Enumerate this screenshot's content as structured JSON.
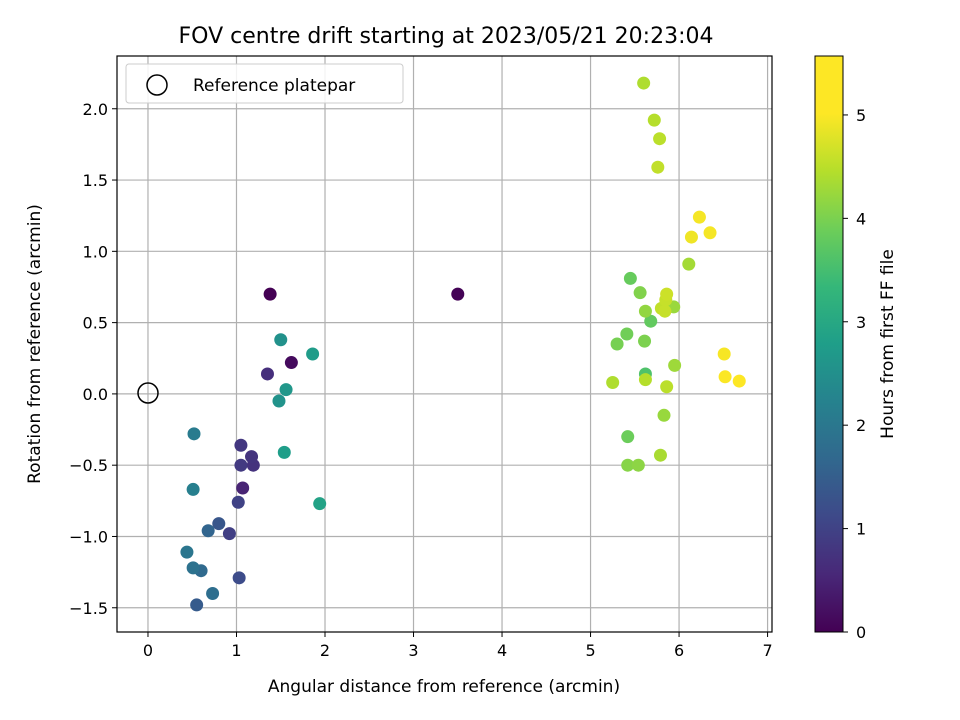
{
  "chart_data": {
    "type": "scatter",
    "title": "FOV centre drift starting at 2023/05/21 20:23:04",
    "xlabel": "Angular distance from reference (arcmin)",
    "ylabel": "Rotation from reference (arcmin)",
    "xlim": [
      -0.35,
      7.05
    ],
    "ylim": [
      -1.67,
      2.37
    ],
    "xticks": [
      0,
      1,
      2,
      3,
      4,
      5,
      6,
      7
    ],
    "xtick_labels": [
      "0",
      "1",
      "2",
      "3",
      "4",
      "5",
      "6",
      "7"
    ],
    "yticks": [
      -1.5,
      -1.0,
      -0.5,
      0.0,
      0.5,
      1.0,
      1.5,
      2.0
    ],
    "ytick_labels": [
      "−1.5",
      "−1.0",
      "−0.5",
      "0.0",
      "0.5",
      "1.0",
      "1.5",
      "2.0"
    ],
    "grid": true,
    "legend": {
      "position": "top-left",
      "entries": [
        "Reference platepar"
      ]
    },
    "reference_point": {
      "x": 0.0,
      "y": 0.0
    },
    "colorbar": {
      "label": "Hours from first FF file",
      "range": [
        0,
        5.57
      ],
      "ticks": [
        0,
        1,
        2,
        3,
        4,
        5
      ],
      "tick_labels": [
        "0",
        "1",
        "2",
        "3",
        "4",
        "5"
      ],
      "colormap": "viridis"
    },
    "points": [
      {
        "x": 1.38,
        "y": 0.7,
        "c": 0.0
      },
      {
        "x": 3.5,
        "y": 0.7,
        "c": 0.03
      },
      {
        "x": 1.62,
        "y": 0.22,
        "c": 0.15
      },
      {
        "x": 1.07,
        "y": -0.66,
        "c": 0.55
      },
      {
        "x": 1.35,
        "y": 0.14,
        "c": 0.75
      },
      {
        "x": 1.19,
        "y": -0.5,
        "c": 0.8
      },
      {
        "x": 1.17,
        "y": -0.44,
        "c": 0.85
      },
      {
        "x": 1.05,
        "y": -0.36,
        "c": 0.9
      },
      {
        "x": 1.05,
        "y": -0.5,
        "c": 0.95
      },
      {
        "x": 0.92,
        "y": -0.98,
        "c": 1.05
      },
      {
        "x": 1.02,
        "y": -0.76,
        "c": 1.1
      },
      {
        "x": 1.03,
        "y": -1.29,
        "c": 1.3
      },
      {
        "x": 0.8,
        "y": -0.91,
        "c": 1.5
      },
      {
        "x": 0.55,
        "y": -1.48,
        "c": 1.6
      },
      {
        "x": 0.68,
        "y": -0.96,
        "c": 1.8
      },
      {
        "x": 0.6,
        "y": -1.24,
        "c": 1.9
      },
      {
        "x": 0.73,
        "y": -1.4,
        "c": 2.0
      },
      {
        "x": 0.51,
        "y": -1.22,
        "c": 2.1
      },
      {
        "x": 0.44,
        "y": -1.11,
        "c": 2.2
      },
      {
        "x": 0.52,
        "y": -0.28,
        "c": 2.3
      },
      {
        "x": 0.51,
        "y": -0.67,
        "c": 2.4
      },
      {
        "x": 1.5,
        "y": 0.38,
        "c": 2.8
      },
      {
        "x": 1.48,
        "y": -0.05,
        "c": 2.85
      },
      {
        "x": 1.56,
        "y": 0.03,
        "c": 2.95
      },
      {
        "x": 1.86,
        "y": 0.28,
        "c": 3.05
      },
      {
        "x": 1.54,
        "y": -0.41,
        "c": 3.1
      },
      {
        "x": 1.94,
        "y": -0.77,
        "c": 3.2
      },
      {
        "x": 5.62,
        "y": 0.14,
        "c": 4.0
      },
      {
        "x": 5.68,
        "y": 0.51,
        "c": 4.2
      },
      {
        "x": 5.45,
        "y": 0.81,
        "c": 4.25
      },
      {
        "x": 5.42,
        "y": -0.3,
        "c": 4.3
      },
      {
        "x": 5.41,
        "y": 0.42,
        "c": 4.35
      },
      {
        "x": 5.3,
        "y": 0.35,
        "c": 4.4
      },
      {
        "x": 5.61,
        "y": 0.37,
        "c": 4.45
      },
      {
        "x": 5.56,
        "y": 0.71,
        "c": 4.5
      },
      {
        "x": 5.42,
        "y": -0.5,
        "c": 4.55
      },
      {
        "x": 5.54,
        "y": -0.5,
        "c": 4.6
      },
      {
        "x": 5.62,
        "y": 0.58,
        "c": 4.65
      },
      {
        "x": 5.83,
        "y": -0.15,
        "c": 4.7
      },
      {
        "x": 5.94,
        "y": 0.61,
        "c": 4.72
      },
      {
        "x": 5.95,
        "y": 0.2,
        "c": 4.75
      },
      {
        "x": 6.11,
        "y": 0.91,
        "c": 4.8
      },
      {
        "x": 5.79,
        "y": -0.43,
        "c": 4.85
      },
      {
        "x": 5.6,
        "y": 2.18,
        "c": 4.9
      },
      {
        "x": 5.72,
        "y": 1.92,
        "c": 4.95
      },
      {
        "x": 5.78,
        "y": 1.79,
        "c": 5.0
      },
      {
        "x": 5.76,
        "y": 1.59,
        "c": 5.05
      },
      {
        "x": 5.25,
        "y": 0.08,
        "c": 4.9
      },
      {
        "x": 5.62,
        "y": 0.1,
        "c": 4.95
      },
      {
        "x": 5.86,
        "y": 0.05,
        "c": 5.0
      },
      {
        "x": 5.8,
        "y": 0.6,
        "c": 5.05
      },
      {
        "x": 5.84,
        "y": 0.58,
        "c": 5.1
      },
      {
        "x": 5.85,
        "y": 0.66,
        "c": 5.1
      },
      {
        "x": 5.86,
        "y": 0.7,
        "c": 5.15
      },
      {
        "x": 6.14,
        "y": 1.1,
        "c": 5.45
      },
      {
        "x": 6.23,
        "y": 1.24,
        "c": 5.5
      },
      {
        "x": 6.35,
        "y": 1.13,
        "c": 5.5
      },
      {
        "x": 6.51,
        "y": 0.28,
        "c": 5.52
      },
      {
        "x": 6.52,
        "y": 0.12,
        "c": 5.55
      },
      {
        "x": 6.68,
        "y": 0.09,
        "c": 5.57
      }
    ]
  }
}
